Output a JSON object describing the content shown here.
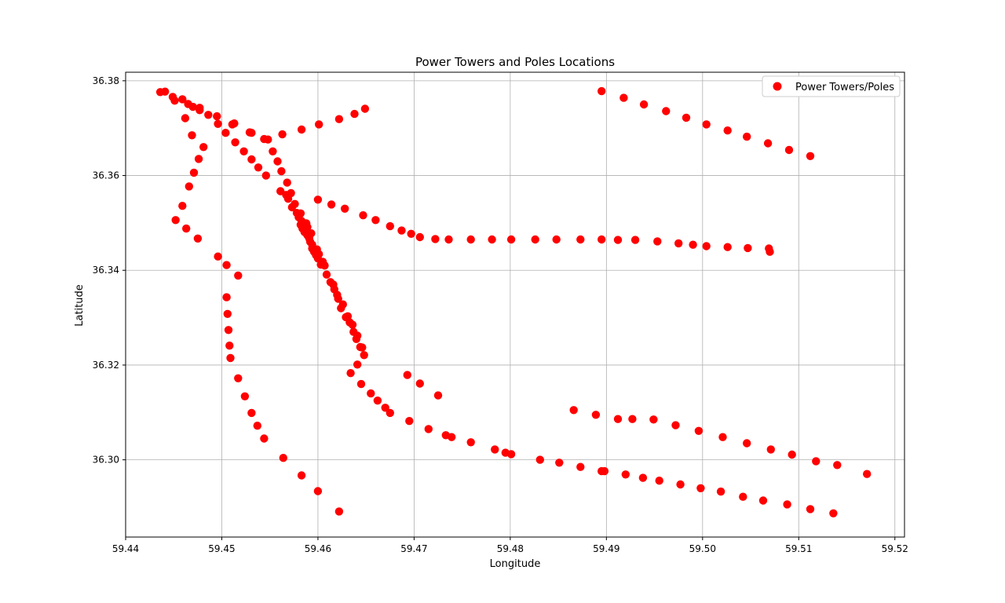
{
  "colors": {
    "marker": "#ff0000",
    "grid": "#b0b0b0",
    "axis": "#000000"
  },
  "chart_data": {
    "type": "scatter",
    "title": "Power Towers and Poles Locations",
    "xlabel": "Longitude",
    "ylabel": "Latitude",
    "xlim": [
      59.44,
      59.521
    ],
    "ylim": [
      36.2837,
      36.3818
    ],
    "x_ticks": [
      59.44,
      59.45,
      59.46,
      59.47,
      59.48,
      59.49,
      59.5,
      59.51,
      59.52
    ],
    "x_tick_labels": [
      "59.44",
      "59.45",
      "59.46",
      "59.47",
      "59.48",
      "59.49",
      "59.50",
      "59.51",
      "59.52"
    ],
    "y_ticks": [
      36.3,
      36.32,
      36.34,
      36.36,
      36.38
    ],
    "y_tick_labels": [
      "36.30",
      "36.32",
      "36.34",
      "36.36",
      "36.38"
    ],
    "grid": true,
    "legend": {
      "position": "upper right",
      "label": "Power Towers/Poles"
    },
    "series": [
      {
        "name": "Power Towers/Poles",
        "points": [
          [
            59.4436,
            36.3776
          ],
          [
            59.4441,
            36.3777
          ],
          [
            59.4449,
            36.3766
          ],
          [
            59.4451,
            36.3758
          ],
          [
            59.4459,
            36.3761
          ],
          [
            59.4465,
            36.3751
          ],
          [
            59.447,
            36.3745
          ],
          [
            59.4477,
            36.3743
          ],
          [
            59.4477,
            36.3738
          ],
          [
            59.4486,
            36.3728
          ],
          [
            59.4495,
            36.3725
          ],
          [
            59.4496,
            36.3709
          ],
          [
            59.4504,
            36.369
          ],
          [
            59.4511,
            36.3708
          ],
          [
            59.4513,
            36.371
          ],
          [
            59.4514,
            36.367
          ],
          [
            59.4523,
            36.3651
          ],
          [
            59.4529,
            36.3691
          ],
          [
            59.4531,
            36.369
          ],
          [
            59.4531,
            36.3634
          ],
          [
            59.4538,
            36.3617
          ],
          [
            59.4544,
            36.3677
          ],
          [
            59.4548,
            36.3676
          ],
          [
            59.4546,
            36.36
          ],
          [
            59.4553,
            36.3651
          ],
          [
            59.4558,
            36.363
          ],
          [
            59.4563,
            36.3687
          ],
          [
            59.4562,
            36.3609
          ],
          [
            59.4561,
            36.3567
          ],
          [
            59.4568,
            36.3585
          ],
          [
            59.4567,
            36.3559
          ],
          [
            59.4569,
            36.3551
          ],
          [
            59.4572,
            36.3563
          ],
          [
            59.4576,
            36.354
          ],
          [
            59.4573,
            36.3533
          ],
          [
            59.4578,
            36.3521
          ],
          [
            59.458,
            36.3512
          ],
          [
            59.4582,
            36.352
          ],
          [
            59.4583,
            36.3504
          ],
          [
            59.4582,
            36.3496
          ],
          [
            59.4584,
            36.3488
          ],
          [
            59.4586,
            36.3481
          ],
          [
            59.4588,
            36.3499
          ],
          [
            59.4589,
            36.3491
          ],
          [
            59.4589,
            36.3474
          ],
          [
            59.4591,
            36.3467
          ],
          [
            59.4593,
            36.3478
          ],
          [
            59.4592,
            36.346
          ],
          [
            59.4594,
            36.3454
          ],
          [
            59.4594,
            36.3446
          ],
          [
            59.4596,
            36.3439
          ],
          [
            59.4598,
            36.3432
          ],
          [
            59.46,
            36.3425
          ],
          [
            59.4599,
            36.3444
          ],
          [
            59.4601,
            36.3434
          ],
          [
            59.4603,
            36.3412
          ],
          [
            59.4605,
            36.3418
          ],
          [
            59.4607,
            36.341
          ],
          [
            59.4609,
            36.3391
          ],
          [
            59.4613,
            36.3375
          ],
          [
            59.4616,
            36.337
          ],
          [
            59.4617,
            36.336
          ],
          [
            59.462,
            36.3348
          ],
          [
            59.4621,
            36.334
          ],
          [
            59.4624,
            36.332
          ],
          [
            59.4626,
            36.3328
          ],
          [
            59.4629,
            36.3301
          ],
          [
            59.4631,
            36.3303
          ],
          [
            59.4633,
            36.329
          ],
          [
            59.4636,
            36.3285
          ],
          [
            59.4637,
            36.327
          ],
          [
            59.4641,
            36.3262
          ],
          [
            59.464,
            36.3255
          ],
          [
            59.4644,
            36.3238
          ],
          [
            59.4646,
            36.3237
          ],
          [
            59.4648,
            36.3221
          ],
          [
            59.4641,
            36.3201
          ],
          [
            59.4634,
            36.3183
          ],
          [
            59.4645,
            36.316
          ],
          [
            59.4655,
            36.314
          ],
          [
            59.4662,
            36.3125
          ],
          [
            59.467,
            36.311
          ],
          [
            59.4675,
            36.3099
          ],
          [
            59.4695,
            36.3082
          ],
          [
            59.4715,
            36.3065
          ],
          [
            59.4733,
            36.3052
          ],
          [
            59.4739,
            36.3048
          ],
          [
            59.4759,
            36.3037
          ],
          [
            59.4784,
            36.3022
          ],
          [
            59.4795,
            36.3015
          ],
          [
            59.4801,
            36.3012
          ],
          [
            59.4831,
            36.3
          ],
          [
            59.4851,
            36.2994
          ],
          [
            59.4873,
            36.2985
          ],
          [
            59.4895,
            36.2976
          ],
          [
            59.4898,
            36.2976
          ],
          [
            59.492,
            36.2969
          ],
          [
            59.4938,
            36.2962
          ],
          [
            59.4955,
            36.2956
          ],
          [
            59.4977,
            36.2948
          ],
          [
            59.4998,
            36.294
          ],
          [
            59.5019,
            36.2933
          ],
          [
            59.5042,
            36.2922
          ],
          [
            59.5063,
            36.2914
          ],
          [
            59.5088,
            36.2906
          ],
          [
            59.5112,
            36.2896
          ],
          [
            59.5136,
            36.2887
          ],
          [
            59.4693,
            36.3179
          ],
          [
            59.4706,
            36.3161
          ],
          [
            59.4725,
            36.3136
          ],
          [
            59.4866,
            36.3105
          ],
          [
            59.4889,
            36.3095
          ],
          [
            59.4912,
            36.3086
          ],
          [
            59.4927,
            36.3086
          ],
          [
            59.4949,
            36.3085
          ],
          [
            59.4972,
            36.3073
          ],
          [
            59.4996,
            36.3061
          ],
          [
            59.5021,
            36.3048
          ],
          [
            59.5046,
            36.3035
          ],
          [
            59.5071,
            36.3022
          ],
          [
            59.5093,
            36.3011
          ],
          [
            59.5118,
            36.2997
          ],
          [
            59.514,
            36.2989
          ],
          [
            59.5171,
            36.297
          ],
          [
            59.46,
            36.3549
          ],
          [
            59.4614,
            36.3539
          ],
          [
            59.4628,
            36.353
          ],
          [
            59.4647,
            36.3516
          ],
          [
            59.466,
            36.3506
          ],
          [
            59.4675,
            36.3493
          ],
          [
            59.4687,
            36.3484
          ],
          [
            59.4697,
            36.3477
          ],
          [
            59.4706,
            36.347
          ],
          [
            59.4722,
            36.3466
          ],
          [
            59.4736,
            36.3465
          ],
          [
            59.4759,
            36.3465
          ],
          [
            59.4781,
            36.3465
          ],
          [
            59.4801,
            36.3465
          ],
          [
            59.4826,
            36.3465
          ],
          [
            59.4848,
            36.3465
          ],
          [
            59.4873,
            36.3465
          ],
          [
            59.4895,
            36.3465
          ],
          [
            59.4912,
            36.3464
          ],
          [
            59.493,
            36.3464
          ],
          [
            59.4953,
            36.3461
          ],
          [
            59.4975,
            36.3457
          ],
          [
            59.499,
            36.3454
          ],
          [
            59.5004,
            36.3451
          ],
          [
            59.5026,
            36.3449
          ],
          [
            59.5047,
            36.3447
          ],
          [
            59.5069,
            36.3446
          ],
          [
            59.507,
            36.3439
          ],
          [
            59.4583,
            36.3697
          ],
          [
            59.4601,
            36.3708
          ],
          [
            59.4622,
            36.3719
          ],
          [
            59.4638,
            36.373
          ],
          [
            59.4649,
            36.3741
          ],
          [
            59.4895,
            36.3778
          ],
          [
            59.4918,
            36.3764
          ],
          [
            59.4939,
            36.375
          ],
          [
            59.4962,
            36.3736
          ],
          [
            59.4983,
            36.3722
          ],
          [
            59.5004,
            36.3708
          ],
          [
            59.5026,
            36.3695
          ],
          [
            59.5046,
            36.3682
          ],
          [
            59.5068,
            36.3668
          ],
          [
            59.509,
            36.3654
          ],
          [
            59.5112,
            36.3641
          ],
          [
            59.4462,
            36.3721
          ],
          [
            59.4469,
            36.3685
          ],
          [
            59.4481,
            36.366
          ],
          [
            59.4476,
            36.3635
          ],
          [
            59.4471,
            36.3606
          ],
          [
            59.4466,
            36.3577
          ],
          [
            59.4459,
            36.3536
          ],
          [
            59.4452,
            36.3506
          ],
          [
            59.4463,
            36.3488
          ],
          [
            59.4475,
            36.3467
          ],
          [
            59.4496,
            36.3429
          ],
          [
            59.4505,
            36.3411
          ],
          [
            59.4517,
            36.3389
          ],
          [
            59.4505,
            36.3343
          ],
          [
            59.4506,
            36.3308
          ],
          [
            59.4507,
            36.3274
          ],
          [
            59.4508,
            36.3241
          ],
          [
            59.4509,
            36.3215
          ],
          [
            59.4517,
            36.3172
          ],
          [
            59.4524,
            36.3134
          ],
          [
            59.4531,
            36.3099
          ],
          [
            59.4537,
            36.3072
          ],
          [
            59.4544,
            36.3045
          ],
          [
            59.4564,
            36.3004
          ],
          [
            59.4583,
            36.2967
          ],
          [
            59.46,
            36.2934
          ],
          [
            59.4622,
            36.2891
          ]
        ]
      }
    ]
  }
}
